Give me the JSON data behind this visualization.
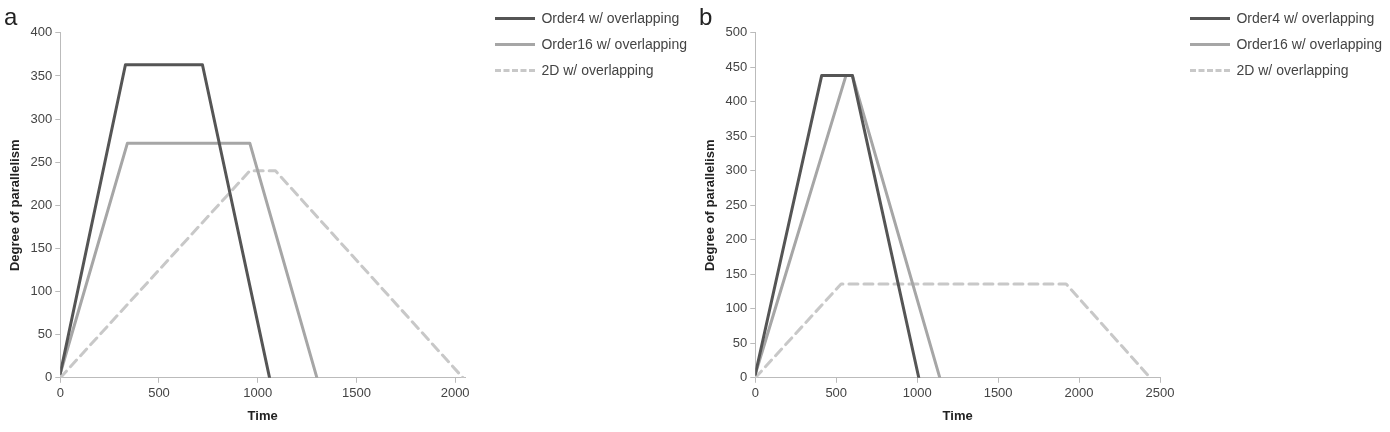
{
  "chart_data": [
    {
      "type": "line",
      "title": "a",
      "xlabel": "Time",
      "ylabel": "Degree of parallelism",
      "xlim": [
        0,
        2050
      ],
      "xticks": [
        0,
        500,
        1000,
        1500,
        2000
      ],
      "ylim": [
        0,
        400
      ],
      "yticks": [
        0,
        50,
        100,
        150,
        200,
        250,
        300,
        350,
        400
      ],
      "grid": false,
      "legend": "top right",
      "marker": "none",
      "series": [
        {
          "name": "Order4 w/ overlapping",
          "color": "#555555",
          "line_style": "solid",
          "x": [
            0,
            330,
            720,
            1060
          ],
          "values": [
            5,
            363,
            363,
            0
          ]
        },
        {
          "name": "Order16 w/ overlapping",
          "color": "#a6a6a6",
          "line_style": "solid",
          "x": [
            0,
            340,
            960,
            1300
          ],
          "values": [
            5,
            272,
            272,
            0
          ]
        },
        {
          "name": "2D w/ overlapping",
          "color": "#c8c8c8",
          "line_style": "dashed",
          "x": [
            0,
            960,
            1090,
            2040
          ],
          "values": [
            0,
            240,
            240,
            0
          ]
        }
      ]
    },
    {
      "type": "line",
      "title": "b",
      "xlabel": "Time",
      "ylabel": "Degree of parallelism",
      "xlim": [
        0,
        2500
      ],
      "xticks": [
        0,
        500,
        1000,
        1500,
        2000,
        2500
      ],
      "ylim": [
        0,
        500
      ],
      "yticks": [
        0,
        50,
        100,
        150,
        200,
        250,
        300,
        350,
        400,
        450,
        500
      ],
      "grid": false,
      "legend": "top right",
      "marker": "none",
      "series": [
        {
          "name": "Order4 w/ overlapping",
          "color": "#555555",
          "line_style": "solid",
          "x": [
            0,
            410,
            600,
            1010
          ],
          "values": [
            5,
            438,
            438,
            0
          ]
        },
        {
          "name": "Order16 w/ overlapping",
          "color": "#a6a6a6",
          "line_style": "solid",
          "x": [
            0,
            560,
            600,
            1140
          ],
          "values": [
            5,
            438,
            438,
            0
          ]
        },
        {
          "name": "2D w/ overlapping",
          "color": "#c8c8c8",
          "line_style": "dashed",
          "x": [
            0,
            530,
            1920,
            2440
          ],
          "values": [
            0,
            136,
            136,
            0
          ]
        }
      ]
    }
  ]
}
